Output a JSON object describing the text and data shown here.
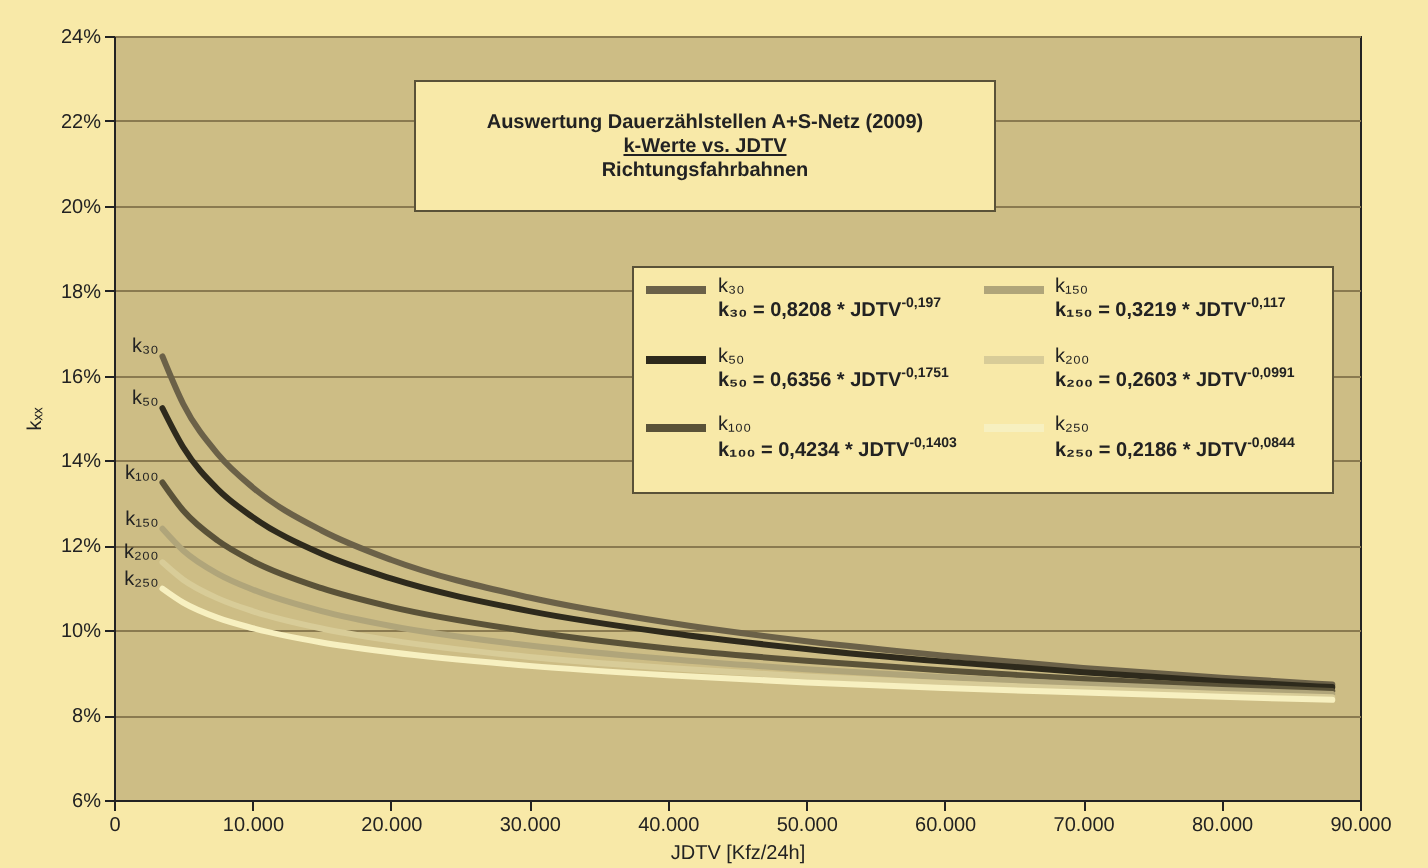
{
  "chart_data": {
    "type": "line",
    "title": "Auswertung Dauerzählstellen A+S-Netz (2009)",
    "subtitle": "k-Werte vs. JDTV",
    "xlabel": "JDTV [Kfz/24h]",
    "ylabel": "kₓₓ",
    "annotations": [
      "Richtungsfahrbahnen",
      "k₃₀ = 0,8208 * JDTV$^{-0,197}$",
      "k₅₀ = 0,6356 * JDTV$^{-0,1751}$",
      "k₁₀₀ = 0,4234 * JDTV$^{-0,1403}$",
      "k₁₅₀ = 0,3219 * JDTV$^{-0,117}$",
      "k₂₀₀ = 0,2603 * JDTV$^{-0,0991}$",
      "k₂₅₀ = 0,2186 * JDTV$^{-0,0844}$"
    ],
    "x": [
      3500,
      5000,
      7500,
      10000,
      15000,
      20000,
      30000,
      40000,
      50000,
      60000,
      70000,
      80000,
      88000
    ],
    "series": [
      {
        "name": "k₃₀",
        "color": "#6b6148",
        "values": [
          16.45,
          15.33,
          14.15,
          13.37,
          12.35,
          11.66,
          10.77,
          10.18,
          9.74,
          9.4,
          9.11,
          8.88,
          8.72
        ]
      },
      {
        "name": "k₅₀",
        "color": "#2e2a1c",
        "values": [
          15.23,
          14.31,
          13.32,
          12.67,
          11.8,
          11.22,
          10.45,
          9.94,
          9.56,
          9.26,
          9.01,
          8.8,
          8.66
        ]
      },
      {
        "name": "k₁₀₀",
        "color": "#5a5238",
        "values": [
          13.48,
          12.82,
          12.11,
          11.63,
          10.99,
          10.55,
          9.97,
          9.57,
          9.28,
          9.05,
          8.85,
          8.68,
          8.57
        ]
      },
      {
        "name": "k₁₅₀",
        "color": "#b0a57a",
        "values": [
          12.39,
          11.88,
          11.33,
          10.96,
          10.45,
          10.1,
          9.64,
          9.32,
          9.08,
          8.89,
          8.73,
          8.59,
          8.5
        ]
      },
      {
        "name": "k₂₀₀",
        "color": "#d8cc98",
        "values": [
          11.6,
          11.19,
          10.75,
          10.45,
          10.04,
          9.76,
          9.37,
          9.11,
          8.91,
          8.75,
          8.62,
          8.5,
          8.42
        ]
      },
      {
        "name": "k₂₅₀",
        "color": "#f7f0c0",
        "values": [
          10.98,
          10.65,
          10.29,
          10.05,
          9.71,
          9.48,
          9.16,
          8.94,
          8.77,
          8.64,
          8.53,
          8.43,
          8.36
        ]
      }
    ],
    "xlim": [
      0,
      90000
    ],
    "xticks": [
      0,
      {
        "value": 10000,
        "label": "10.000"
      },
      {
        "value": 20000,
        "label": "20.000"
      },
      {
        "value": 30000,
        "label": "30.000"
      },
      {
        "value": 40000,
        "label": "40.000"
      },
      {
        "value": 50000,
        "label": "50.000"
      },
      {
        "value": 60000,
        "label": "60.000"
      },
      {
        "value": 70000,
        "label": "70.000"
      },
      {
        "value": 80000,
        "label": "80.000"
      },
      {
        "value": 90000,
        "label": "90.000"
      }
    ],
    "ylim": [
      6,
      24
    ],
    "yticks": [
      {
        "value": 6,
        "label": "6%"
      },
      {
        "value": 8,
        "label": "8%"
      },
      {
        "value": 10,
        "label": "10%"
      },
      {
        "value": 12,
        "label": "12%"
      },
      {
        "value": 14,
        "label": "14%"
      },
      {
        "value": 16,
        "label": "16%"
      },
      {
        "value": 18,
        "label": "18%"
      },
      {
        "value": 20,
        "label": "20%"
      },
      {
        "value": 22,
        "label": "22%"
      },
      {
        "value": 24,
        "label": "24%"
      }
    ],
    "grid": "y",
    "legend": "right",
    "marker": "none",
    "line_style": "solid"
  }
}
